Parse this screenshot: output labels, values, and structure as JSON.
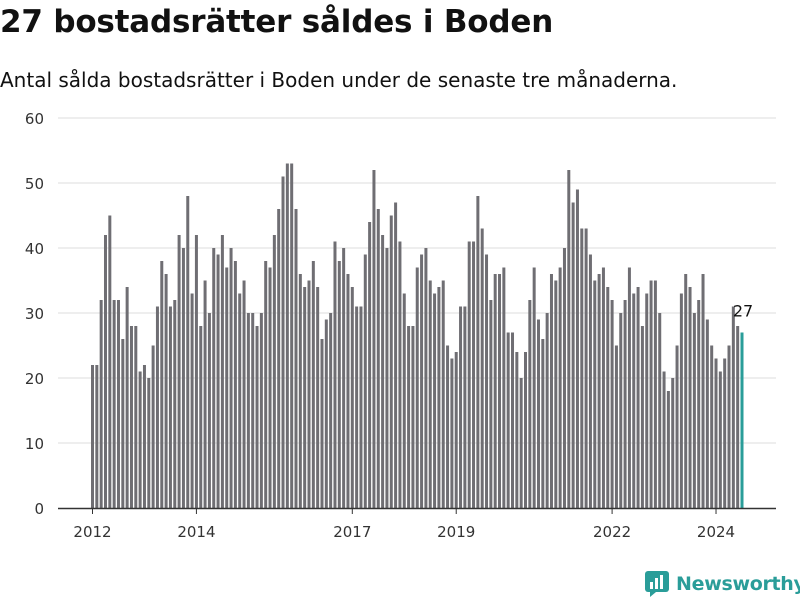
{
  "title": "27 bostadsrätter såldes i Boden",
  "subtitle": "Antal sålda bostadsrätter i Boden under de senaste tre månaderna.",
  "brand": {
    "name": "Newsworthy",
    "color": "#2a9d99"
  },
  "colors": {
    "bar": "#6f6e73",
    "highlight": "#2a9d99",
    "grid": "#dddddd",
    "axis": "#333333"
  },
  "chart_data": {
    "type": "bar",
    "title": "27 bostadsrätter såldes i Boden",
    "xlabel": "",
    "ylabel": "",
    "ylim": [
      0,
      60
    ],
    "yticks": [
      "0",
      "10",
      "20",
      "30",
      "40",
      "50",
      "60"
    ],
    "ytick_values": [
      0,
      10,
      20,
      30,
      40,
      50,
      60
    ],
    "xticks": [
      {
        "label": "2012",
        "index": 0
      },
      {
        "label": "2014",
        "index": 24
      },
      {
        "label": "2017",
        "index": 60
      },
      {
        "label": "2019",
        "index": 84
      },
      {
        "label": "2022",
        "index": 120
      },
      {
        "label": "2024",
        "index": 144
      }
    ],
    "annotation": {
      "text": "27",
      "index": 150
    },
    "highlight_index": 150,
    "values": [
      22,
      22,
      32,
      42,
      45,
      32,
      32,
      26,
      34,
      28,
      28,
      21,
      22,
      20,
      25,
      31,
      38,
      36,
      31,
      32,
      42,
      40,
      48,
      33,
      42,
      28,
      35,
      30,
      40,
      39,
      42,
      37,
      40,
      38,
      33,
      35,
      30,
      30,
      28,
      30,
      38,
      37,
      42,
      46,
      51,
      53,
      53,
      46,
      36,
      34,
      35,
      38,
      34,
      26,
      29,
      30,
      41,
      38,
      40,
      36,
      34,
      31,
      31,
      39,
      44,
      52,
      46,
      42,
      40,
      45,
      47,
      41,
      33,
      28,
      28,
      37,
      39,
      40,
      35,
      33,
      34,
      35,
      25,
      23,
      24,
      31,
      31,
      41,
      41,
      48,
      43,
      39,
      32,
      36,
      36,
      37,
      27,
      27,
      24,
      20,
      24,
      32,
      37,
      29,
      26,
      30,
      36,
      35,
      37,
      40,
      52,
      47,
      49,
      43,
      43,
      39,
      35,
      36,
      37,
      34,
      32,
      25,
      30,
      32,
      37,
      33,
      34,
      28,
      33,
      35,
      35,
      30,
      21,
      18,
      20,
      25,
      33,
      36,
      34,
      30,
      32,
      36,
      29,
      25,
      23,
      21,
      23,
      25,
      31,
      28,
      27
    ]
  }
}
